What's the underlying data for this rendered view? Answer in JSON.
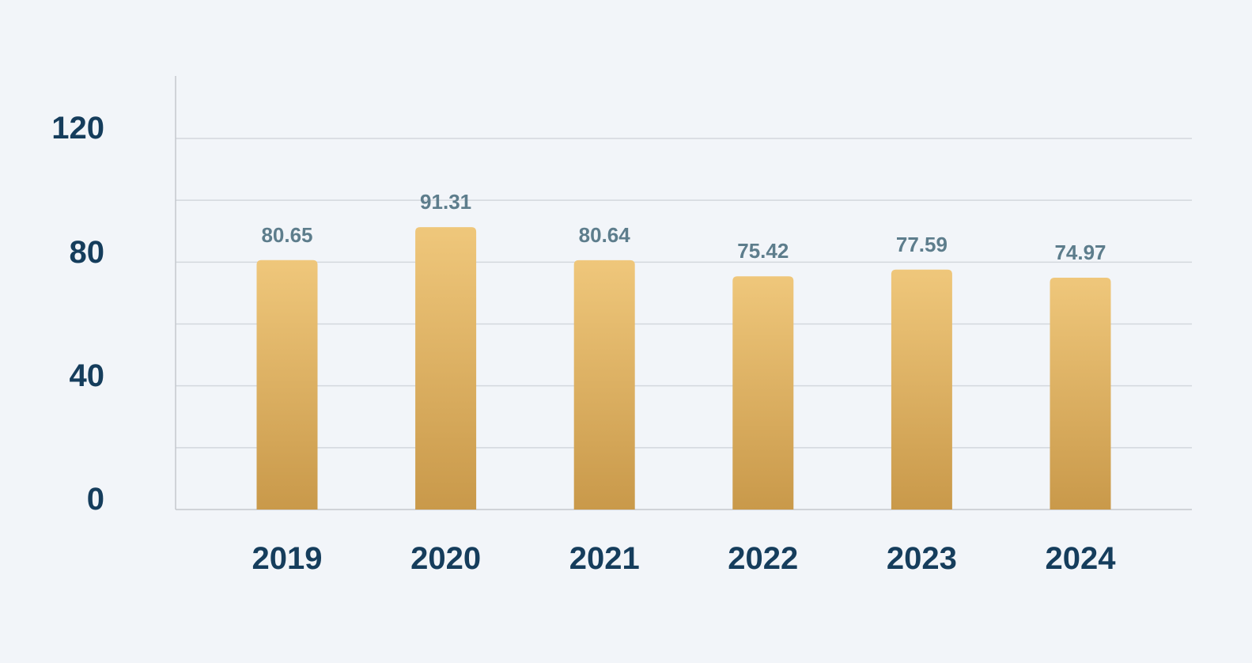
{
  "chart_data": {
    "type": "bar",
    "categories": [
      "2019",
      "2020",
      "2021",
      "2022",
      "2023",
      "2024"
    ],
    "values": [
      80.65,
      91.31,
      80.64,
      75.42,
      77.59,
      74.97
    ],
    "data_labels": [
      "80.65",
      "91.31",
      "80.64",
      "75.42",
      "77.59",
      "74.97"
    ],
    "y_ticks": [
      "0",
      "40",
      "80",
      "120"
    ],
    "y_tick_values": [
      0,
      40,
      80,
      120
    ],
    "ylim": [
      0,
      140
    ],
    "gridline_step": 20,
    "grid": true,
    "title": "",
    "xlabel": "",
    "ylabel": "",
    "colors": {
      "bar_top": "#efc77b",
      "bar_bottom": "#c9994a",
      "grid": "#d3d7dd",
      "axis": "#c4c8ce",
      "tick_text": "#153d5c",
      "data_label_text": "#5d7d8c",
      "background": "#f2f5f9"
    }
  }
}
